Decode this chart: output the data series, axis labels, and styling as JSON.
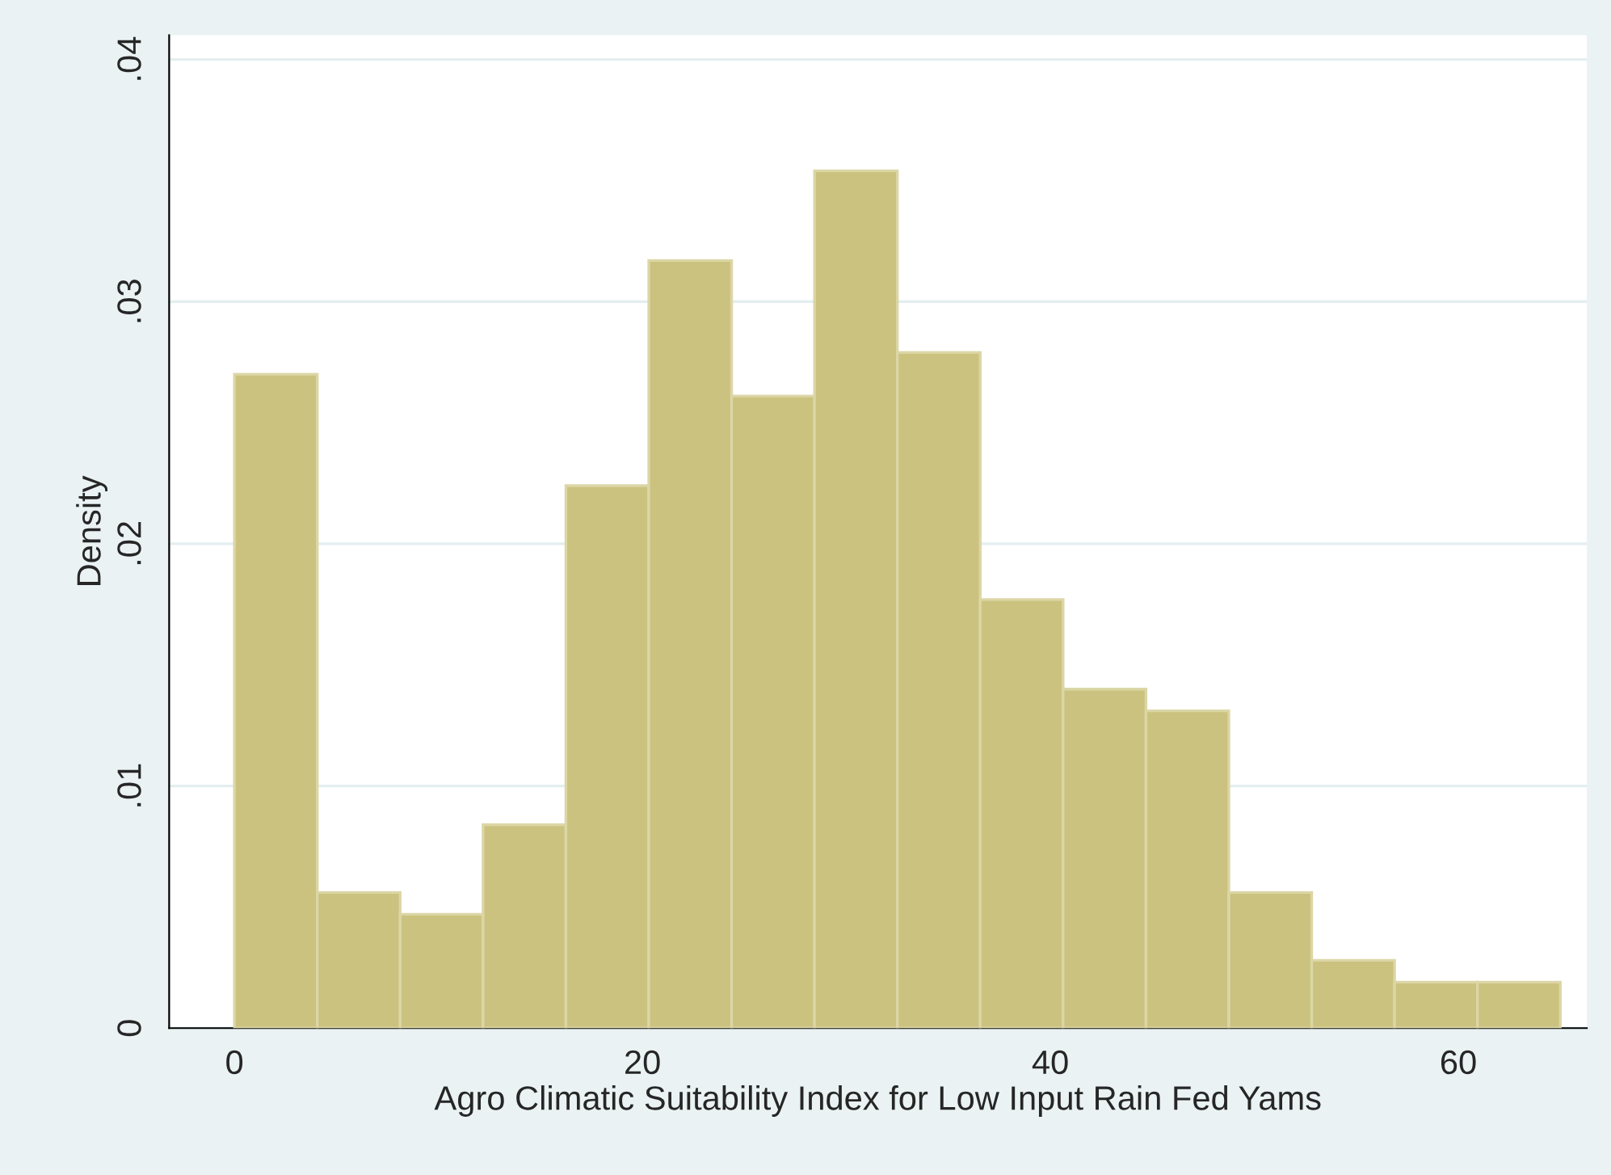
{
  "chart_data": {
    "type": "histogram",
    "xlabel": "Agro Climatic Suitability Index for Low Input Rain Fed Yams",
    "ylabel": "Density",
    "bins": [
      0,
      4.0625,
      8.125,
      12.1875,
      16.25,
      20.3125,
      24.375,
      28.4375,
      32.5,
      36.5625,
      40.625,
      44.6875,
      48.75,
      52.8125,
      56.875,
      60.9375,
      65
    ],
    "values": [
      0.027,
      0.0056,
      0.0047,
      0.0084,
      0.0224,
      0.0317,
      0.0261,
      0.0354,
      0.0279,
      0.0177,
      0.014,
      0.0131,
      0.0056,
      0.0028,
      0.0019,
      0.0019
    ],
    "color": "#cbc27f",
    "xlim": [
      -3.2,
      66.3
    ],
    "xticks": [
      0,
      20,
      40,
      60
    ],
    "ylim": [
      0,
      0.041
    ],
    "yticks": [
      0,
      {
        "value": 0.01,
        "label": ".01"
      },
      {
        "value": 0.02,
        "label": ".02"
      },
      {
        "value": 0.03,
        "label": ".03"
      },
      {
        "value": 0.04,
        "label": ".04"
      }
    ],
    "grid": "y"
  }
}
